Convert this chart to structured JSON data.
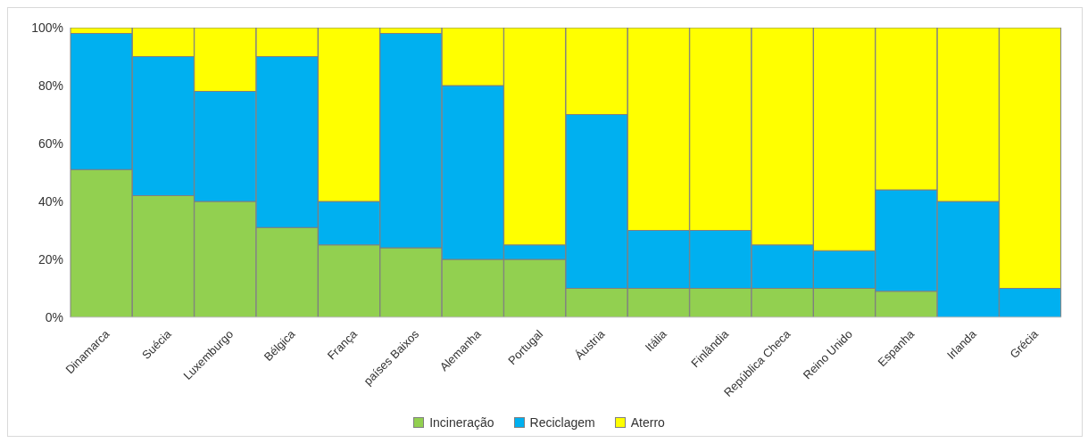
{
  "chart_data": {
    "type": "bar",
    "stacked": true,
    "categories": [
      "Dinamarca",
      "Suécia",
      "Luxemburgo",
      "Bélgica",
      "França",
      "países Baixos",
      "Alemanha",
      "Portugal",
      "Áustria",
      "Itália",
      "Finlândia",
      "República Checa",
      "Reino Unido",
      "Espanha",
      "Irlanda",
      "Grécia"
    ],
    "series": [
      {
        "name": "Incineração",
        "color": "#92d050",
        "values": [
          51,
          42,
          40,
          31,
          25,
          24,
          20,
          20,
          10,
          10,
          10,
          10,
          10,
          9,
          0,
          0
        ]
      },
      {
        "name": "Reciclagem",
        "color": "#00b0f0",
        "values": [
          47,
          48,
          38,
          59,
          15,
          74,
          60,
          5,
          60,
          20,
          20,
          15,
          13,
          35,
          40,
          10
        ]
      },
      {
        "name": "Aterro",
        "color": "#ffff00",
        "values": [
          2,
          10,
          22,
          10,
          60,
          2,
          20,
          75,
          30,
          70,
          70,
          75,
          77,
          56,
          60,
          90
        ]
      }
    ],
    "ylim": [
      0,
      100
    ],
    "yticks": [
      {
        "value": 0,
        "label": "0%"
      },
      {
        "value": 20,
        "label": "20%"
      },
      {
        "value": 40,
        "label": "40%"
      },
      {
        "value": 60,
        "label": "60%"
      },
      {
        "value": 80,
        "label": "80%"
      },
      {
        "value": 100,
        "label": "100%"
      }
    ],
    "grid": false,
    "legend": "bottom"
  }
}
